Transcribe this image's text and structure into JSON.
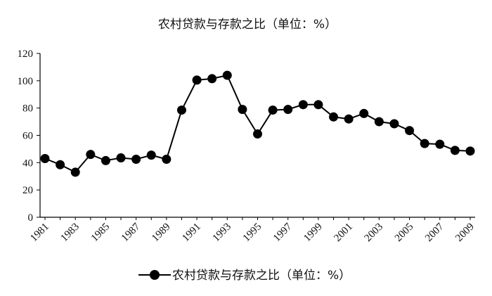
{
  "chart_data": {
    "type": "line",
    "title": "农村贷款与存款之比（单位：%）",
    "x": [
      1981,
      1982,
      1983,
      1984,
      1985,
      1986,
      1987,
      1988,
      1989,
      1990,
      1991,
      1992,
      1993,
      1994,
      1995,
      1996,
      1997,
      1998,
      1999,
      2000,
      2001,
      2002,
      2003,
      2004,
      2005,
      2006,
      2007,
      2008,
      2009
    ],
    "x_tick_labels": [
      "1981",
      "1983",
      "1985",
      "1987",
      "1989",
      "1991",
      "1993",
      "1995",
      "1997",
      "1999",
      "2001",
      "2003",
      "2005",
      "2007",
      "2009"
    ],
    "ylim": [
      0,
      120
    ],
    "y_ticks": [
      "0",
      "20",
      "40",
      "60",
      "80",
      "100",
      "120"
    ],
    "series": [
      {
        "name": "农村贷款与存款之比（单位：%）",
        "values": [
          43,
          38.5,
          33,
          46,
          41.5,
          43.5,
          42.5,
          45.5,
          42.5,
          78.5,
          100.5,
          101.5,
          104,
          79,
          61,
          78.5,
          79,
          82.5,
          82.5,
          73.5,
          72,
          76,
          70,
          68.5,
          63.5,
          54,
          53.5,
          49,
          48.5
        ]
      }
    ],
    "legend_position": "bottom",
    "grid": false,
    "colors": {
      "line": "#000000",
      "marker": "#000000"
    }
  }
}
